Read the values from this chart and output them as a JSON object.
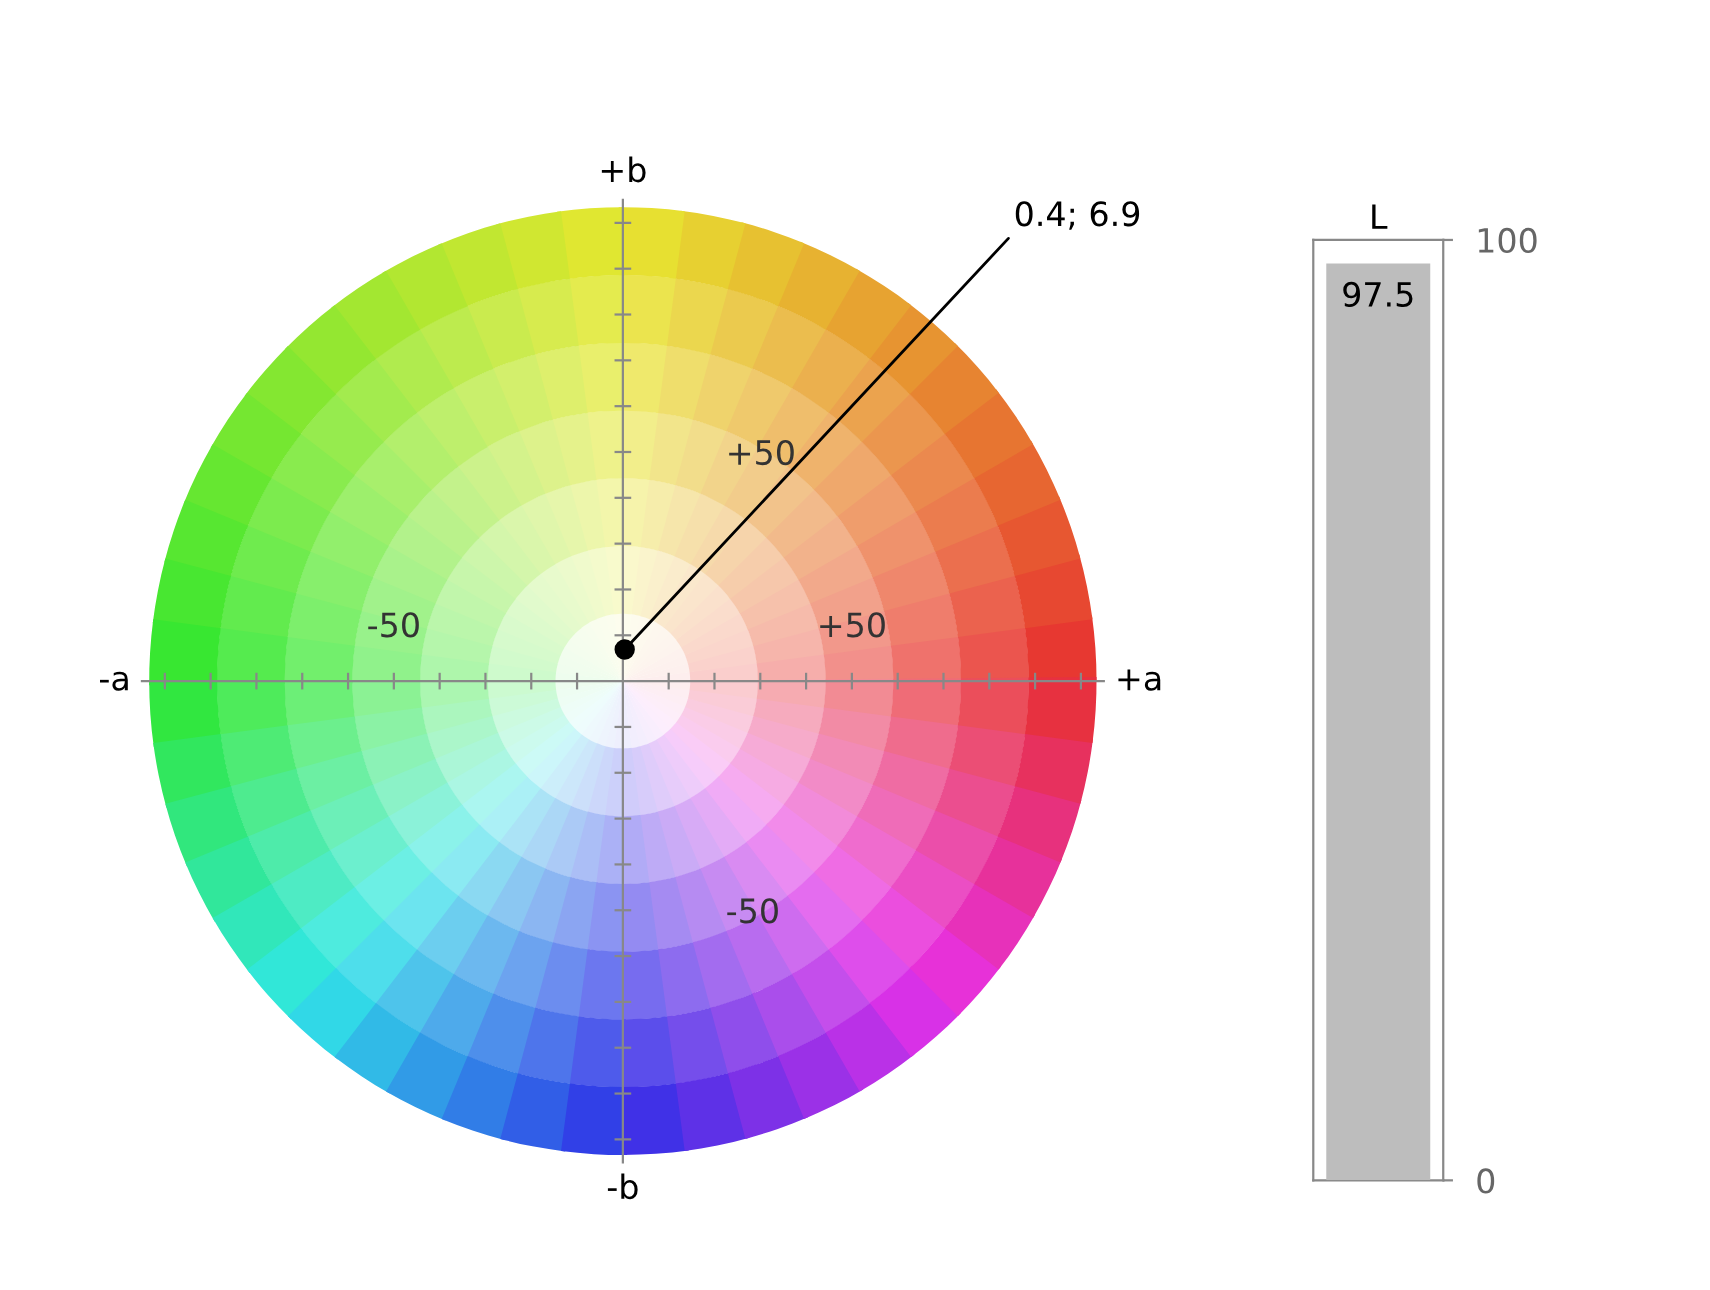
{
  "chart_data": [
    {
      "type": "scatter",
      "x": [
        0.4
      ],
      "values": [
        6.9
      ],
      "color": "#000000",
      "marker": "circle",
      "grid": false,
      "xlim": [
        -105,
        105
      ],
      "ylim": [
        -105,
        105
      ],
      "xticks": [
        {
          "value": -100,
          "label": null
        },
        {
          "value": -90,
          "label": null
        },
        {
          "value": -80,
          "label": null
        },
        {
          "value": -70,
          "label": null
        },
        {
          "value": -60,
          "label": null
        },
        -50,
        {
          "value": -40,
          "label": null
        },
        {
          "value": -30,
          "label": null
        },
        {
          "value": -20,
          "label": null
        },
        {
          "value": -10,
          "label": null
        },
        {
          "value": 10,
          "label": null
        },
        {
          "value": 20,
          "label": null
        },
        {
          "value": 30,
          "label": null
        },
        {
          "value": 40,
          "label": null
        },
        {
          "value": 50,
          "label": "+50"
        },
        {
          "value": 60,
          "label": null
        },
        {
          "value": 70,
          "label": null
        },
        {
          "value": 80,
          "label": null
        },
        {
          "value": 90,
          "label": null
        },
        {
          "value": 100,
          "label": null
        }
      ],
      "yticks": [
        {
          "value": -100,
          "label": null
        },
        {
          "value": -90,
          "label": null
        },
        {
          "value": -80,
          "label": null
        },
        {
          "value": -70,
          "label": null
        },
        {
          "value": -60,
          "label": null
        },
        -50,
        {
          "value": -40,
          "label": null
        },
        {
          "value": -30,
          "label": null
        },
        {
          "value": -20,
          "label": null
        },
        {
          "value": -10,
          "label": null
        },
        {
          "value": 10,
          "label": null
        },
        {
          "value": 20,
          "label": null
        },
        {
          "value": 30,
          "label": null
        },
        {
          "value": 40,
          "label": null
        },
        {
          "value": 50,
          "label": "+50"
        },
        {
          "value": 60,
          "label": null
        },
        {
          "value": 70,
          "label": null
        },
        {
          "value": 80,
          "label": null
        },
        {
          "value": 90,
          "label": null
        },
        {
          "value": 100,
          "label": null
        }
      ],
      "annotations": [
        {
          "text": "0.4; 6.9",
          "x": 0.4,
          "y": 6.9
        },
        "+a",
        "-a",
        "+b",
        "-b"
      ]
    },
    {
      "type": "bar",
      "title": "L",
      "categories": [
        null
      ],
      "values": [
        97.5
      ],
      "color": "#bdbdbd",
      "ylim": [
        0,
        100
      ],
      "yticks": [
        0,
        100
      ],
      "data_labels": true
    }
  ]
}
